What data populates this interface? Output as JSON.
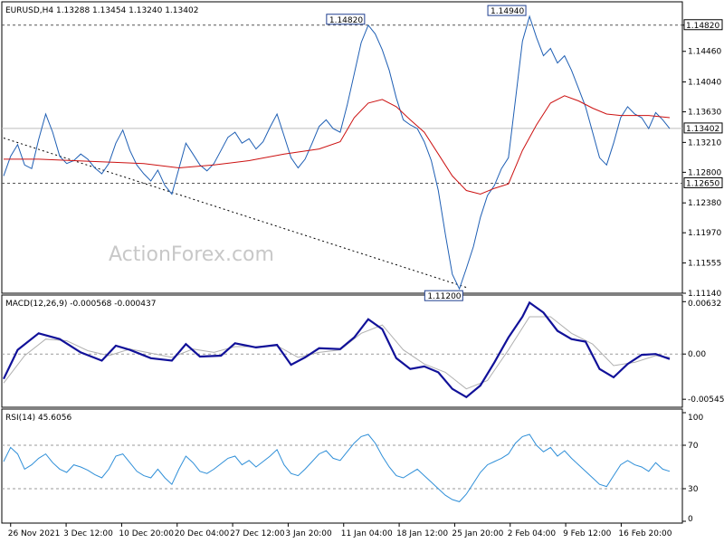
{
  "chart_data": {
    "type": "line",
    "watermark": "ActionForex.com",
    "x_labels": [
      "26 Nov 2021",
      "3 Dec 12:00",
      "10 Dec 20:00",
      "20 Dec 04:00",
      "27 Dec 12:00",
      "3 Jan 20:00",
      "11 Jan 04:00",
      "18 Jan 12:00",
      "25 Jan 20:00",
      "2 Feb 04:00",
      "9 Feb 12:00",
      "16 Feb 20:00"
    ],
    "price_panel": {
      "header": "EURUSD,H4  1.13288 1.13454 1.13240 1.13402",
      "ylim": [
        1.1114,
        1.1514
      ],
      "y_ticks": [
        "1.11140",
        "1.11555",
        "1.11970",
        "1.12380",
        "1.12800",
        "1.13210",
        "1.13630",
        "1.14040",
        "1.14460",
        "1.14820"
      ],
      "ref_levels": [
        1.1482,
        1.1265
      ],
      "current_price": 1.13402,
      "current_price_label": "1.13402",
      "ref_labels": [
        "1.14820",
        "1.12650"
      ],
      "callouts": [
        {
          "label": "1.14820",
          "value": 1.1482
        },
        {
          "label": "1.14940",
          "value": 1.1494
        },
        {
          "label": "1.11200",
          "value": 1.112
        }
      ],
      "price_series": [
        [
          0,
          1.1275
        ],
        [
          1,
          1.1302
        ],
        [
          2,
          1.1318
        ],
        [
          3,
          1.129
        ],
        [
          4,
          1.1285
        ],
        [
          5,
          1.1325
        ],
        [
          6,
          1.136
        ],
        [
          7,
          1.1335
        ],
        [
          8,
          1.1302
        ],
        [
          9,
          1.1292
        ],
        [
          10,
          1.1296
        ],
        [
          11,
          1.1305
        ],
        [
          12,
          1.1298
        ],
        [
          13,
          1.1286
        ],
        [
          14,
          1.1278
        ],
        [
          15,
          1.1292
        ],
        [
          16,
          1.132
        ],
        [
          17,
          1.1338
        ],
        [
          18,
          1.131
        ],
        [
          19,
          1.129
        ],
        [
          20,
          1.1278
        ],
        [
          21,
          1.1268
        ],
        [
          22,
          1.1283
        ],
        [
          23,
          1.1262
        ],
        [
          24,
          1.125
        ],
        [
          25,
          1.1285
        ],
        [
          26,
          1.132
        ],
        [
          27,
          1.1305
        ],
        [
          28,
          1.129
        ],
        [
          29,
          1.1282
        ],
        [
          30,
          1.1292
        ],
        [
          31,
          1.131
        ],
        [
          32,
          1.1328
        ],
        [
          33,
          1.1335
        ],
        [
          34,
          1.132
        ],
        [
          35,
          1.1326
        ],
        [
          36,
          1.1312
        ],
        [
          37,
          1.1322
        ],
        [
          38,
          1.1342
        ],
        [
          39,
          1.136
        ],
        [
          40,
          1.133
        ],
        [
          41,
          1.13
        ],
        [
          42,
          1.1286
        ],
        [
          43,
          1.1298
        ],
        [
          44,
          1.132
        ],
        [
          45,
          1.1343
        ],
        [
          46,
          1.1352
        ],
        [
          47,
          1.134
        ],
        [
          48,
          1.1335
        ],
        [
          49,
          1.1372
        ],
        [
          50,
          1.1415
        ],
        [
          51,
          1.1458
        ],
        [
          52,
          1.1482
        ],
        [
          53,
          1.147
        ],
        [
          54,
          1.1448
        ],
        [
          55,
          1.142
        ],
        [
          56,
          1.1382
        ],
        [
          57,
          1.1352
        ],
        [
          58,
          1.1345
        ],
        [
          59,
          1.134
        ],
        [
          60,
          1.1322
        ],
        [
          61,
          1.1296
        ],
        [
          62,
          1.1255
        ],
        [
          63,
          1.1195
        ],
        [
          64,
          1.114
        ],
        [
          65,
          1.112
        ],
        [
          66,
          1.1148
        ],
        [
          67,
          1.1178
        ],
        [
          68,
          1.1218
        ],
        [
          69,
          1.1248
        ],
        [
          70,
          1.1262
        ],
        [
          71,
          1.1285
        ],
        [
          72,
          1.13
        ],
        [
          73,
          1.138
        ],
        [
          74,
          1.146
        ],
        [
          75,
          1.1494
        ],
        [
          76,
          1.1465
        ],
        [
          77,
          1.144
        ],
        [
          78,
          1.145
        ],
        [
          79,
          1.143
        ],
        [
          80,
          1.144
        ],
        [
          81,
          1.142
        ],
        [
          82,
          1.1395
        ],
        [
          83,
          1.137
        ],
        [
          84,
          1.1335
        ],
        [
          85,
          1.13
        ],
        [
          86,
          1.129
        ],
        [
          87,
          1.132
        ],
        [
          88,
          1.1355
        ],
        [
          89,
          1.137
        ],
        [
          90,
          1.136
        ],
        [
          91,
          1.1355
        ],
        [
          92,
          1.134
        ],
        [
          93,
          1.1362
        ],
        [
          94,
          1.1352
        ],
        [
          95,
          1.134
        ]
      ],
      "ma_series": [
        [
          0,
          1.1298
        ],
        [
          5,
          1.1298
        ],
        [
          10,
          1.1296
        ],
        [
          15,
          1.1294
        ],
        [
          20,
          1.1292
        ],
        [
          25,
          1.1286
        ],
        [
          30,
          1.129
        ],
        [
          35,
          1.1296
        ],
        [
          40,
          1.1305
        ],
        [
          45,
          1.1312
        ],
        [
          48,
          1.1322
        ],
        [
          50,
          1.1355
        ],
        [
          52,
          1.1375
        ],
        [
          54,
          1.138
        ],
        [
          56,
          1.137
        ],
        [
          58,
          1.1352
        ],
        [
          60,
          1.1335
        ],
        [
          62,
          1.1305
        ],
        [
          64,
          1.1275
        ],
        [
          66,
          1.1255
        ],
        [
          68,
          1.125
        ],
        [
          70,
          1.1258
        ],
        [
          72,
          1.1264
        ],
        [
          74,
          1.131
        ],
        [
          76,
          1.1345
        ],
        [
          78,
          1.1375
        ],
        [
          80,
          1.1385
        ],
        [
          82,
          1.1378
        ],
        [
          84,
          1.1368
        ],
        [
          86,
          1.136
        ],
        [
          88,
          1.1358
        ],
        [
          90,
          1.1358
        ],
        [
          92,
          1.1358
        ],
        [
          95,
          1.1355
        ]
      ],
      "trendline": [
        [
          0,
          1.1327
        ],
        [
          66,
          1.1122
        ]
      ]
    },
    "macd_panel": {
      "header": "MACD(12,26,9) -0.000568 -0.000437",
      "ylim": [
        -0.0062,
        0.0069
      ],
      "y_ticks": [
        "0.00632",
        "0.00",
        "-0.005455"
      ],
      "macd": [
        [
          0,
          -0.003
        ],
        [
          2,
          0.0005
        ],
        [
          5,
          0.0025
        ],
        [
          8,
          0.0018
        ],
        [
          11,
          0.0002
        ],
        [
          14,
          -0.0008
        ],
        [
          16,
          0.001
        ],
        [
          18,
          0.0005
        ],
        [
          21,
          -0.0005
        ],
        [
          24,
          -0.0008
        ],
        [
          26,
          0.0012
        ],
        [
          28,
          -0.0003
        ],
        [
          31,
          -0.0002
        ],
        [
          33,
          0.0013
        ],
        [
          36,
          0.0008
        ],
        [
          39,
          0.0011
        ],
        [
          41,
          -0.0013
        ],
        [
          43,
          -0.0004
        ],
        [
          45,
          0.0007
        ],
        [
          48,
          0.0006
        ],
        [
          50,
          0.002
        ],
        [
          52,
          0.0042
        ],
        [
          54,
          0.003
        ],
        [
          56,
          -0.0005
        ],
        [
          58,
          -0.0018
        ],
        [
          60,
          -0.0015
        ],
        [
          62,
          -0.0022
        ],
        [
          64,
          -0.0042
        ],
        [
          66,
          -0.0052
        ],
        [
          68,
          -0.0038
        ],
        [
          70,
          -0.001
        ],
        [
          72,
          0.002
        ],
        [
          74,
          0.0045
        ],
        [
          75,
          0.0062
        ],
        [
          77,
          0.005
        ],
        [
          79,
          0.0028
        ],
        [
          81,
          0.0018
        ],
        [
          83,
          0.0015
        ],
        [
          85,
          -0.0018
        ],
        [
          87,
          -0.0028
        ],
        [
          89,
          -0.0012
        ],
        [
          91,
          -0.0001
        ],
        [
          93,
          0.0
        ],
        [
          95,
          -0.0006
        ]
      ],
      "signal": [
        [
          0,
          -0.0035
        ],
        [
          3,
          -0.0002
        ],
        [
          6,
          0.0018
        ],
        [
          9,
          0.0016
        ],
        [
          12,
          0.0004
        ],
        [
          15,
          -0.0002
        ],
        [
          18,
          0.0006
        ],
        [
          21,
          0.0001
        ],
        [
          24,
          -0.0004
        ],
        [
          27,
          0.0006
        ],
        [
          30,
          0.0002
        ],
        [
          33,
          0.0009
        ],
        [
          36,
          0.0009
        ],
        [
          39,
          0.001
        ],
        [
          42,
          -0.0004
        ],
        [
          45,
          0.0002
        ],
        [
          48,
          0.0005
        ],
        [
          51,
          0.0025
        ],
        [
          54,
          0.0035
        ],
        [
          57,
          0.0005
        ],
        [
          60,
          -0.0012
        ],
        [
          63,
          -0.0022
        ],
        [
          66,
          -0.0042
        ],
        [
          69,
          -0.0032
        ],
        [
          72,
          0.0005
        ],
        [
          75,
          0.0045
        ],
        [
          78,
          0.0045
        ],
        [
          81,
          0.0025
        ],
        [
          84,
          0.0012
        ],
        [
          87,
          -0.0014
        ],
        [
          90,
          -0.001
        ],
        [
          93,
          -0.0002
        ],
        [
          95,
          -0.0004
        ]
      ]
    },
    "rsi_panel": {
      "header": "RSI(14) 45.6056",
      "ylim": [
        0,
        100
      ],
      "y_ticks": [
        "100",
        "70",
        "30",
        "0"
      ],
      "levels": [
        70,
        30
      ],
      "rsi": [
        [
          0,
          55
        ],
        [
          1,
          68
        ],
        [
          2,
          62
        ],
        [
          3,
          48
        ],
        [
          4,
          52
        ],
        [
          5,
          58
        ],
        [
          6,
          62
        ],
        [
          7,
          54
        ],
        [
          8,
          48
        ],
        [
          9,
          45
        ],
        [
          10,
          52
        ],
        [
          11,
          50
        ],
        [
          12,
          47
        ],
        [
          13,
          43
        ],
        [
          14,
          40
        ],
        [
          15,
          48
        ],
        [
          16,
          60
        ],
        [
          17,
          62
        ],
        [
          18,
          54
        ],
        [
          19,
          46
        ],
        [
          20,
          42
        ],
        [
          21,
          40
        ],
        [
          22,
          48
        ],
        [
          23,
          40
        ],
        [
          24,
          34
        ],
        [
          25,
          48
        ],
        [
          26,
          60
        ],
        [
          27,
          54
        ],
        [
          28,
          46
        ],
        [
          29,
          44
        ],
        [
          30,
          48
        ],
        [
          31,
          53
        ],
        [
          32,
          58
        ],
        [
          33,
          60
        ],
        [
          34,
          52
        ],
        [
          35,
          56
        ],
        [
          36,
          50
        ],
        [
          37,
          55
        ],
        [
          38,
          60
        ],
        [
          39,
          66
        ],
        [
          40,
          52
        ],
        [
          41,
          44
        ],
        [
          42,
          42
        ],
        [
          43,
          48
        ],
        [
          44,
          55
        ],
        [
          45,
          62
        ],
        [
          46,
          65
        ],
        [
          47,
          58
        ],
        [
          48,
          56
        ],
        [
          49,
          64
        ],
        [
          50,
          72
        ],
        [
          51,
          78
        ],
        [
          52,
          80
        ],
        [
          53,
          72
        ],
        [
          54,
          60
        ],
        [
          55,
          50
        ],
        [
          56,
          42
        ],
        [
          57,
          40
        ],
        [
          58,
          44
        ],
        [
          59,
          48
        ],
        [
          60,
          42
        ],
        [
          61,
          36
        ],
        [
          62,
          30
        ],
        [
          63,
          24
        ],
        [
          64,
          20
        ],
        [
          65,
          18
        ],
        [
          66,
          25
        ],
        [
          67,
          35
        ],
        [
          68,
          45
        ],
        [
          69,
          52
        ],
        [
          70,
          55
        ],
        [
          71,
          58
        ],
        [
          72,
          62
        ],
        [
          73,
          72
        ],
        [
          74,
          78
        ],
        [
          75,
          80
        ],
        [
          76,
          70
        ],
        [
          77,
          64
        ],
        [
          78,
          68
        ],
        [
          79,
          60
        ],
        [
          80,
          65
        ],
        [
          81,
          58
        ],
        [
          82,
          52
        ],
        [
          83,
          46
        ],
        [
          84,
          40
        ],
        [
          85,
          34
        ],
        [
          86,
          32
        ],
        [
          87,
          42
        ],
        [
          88,
          52
        ],
        [
          89,
          56
        ],
        [
          90,
          52
        ],
        [
          91,
          50
        ],
        [
          92,
          46
        ],
        [
          93,
          54
        ],
        [
          94,
          48
        ],
        [
          95,
          46
        ]
      ]
    },
    "colors": {
      "price": "#1f5fb4",
      "ma": "#cc1111",
      "macd": "#111199",
      "signal": "#b0b0b0",
      "rsi": "#2f8fd8",
      "grid": "#9a9a9a"
    }
  }
}
